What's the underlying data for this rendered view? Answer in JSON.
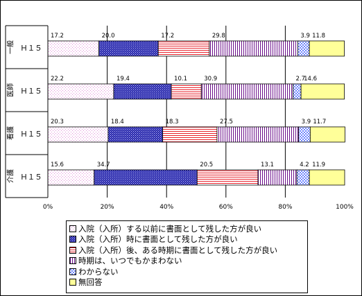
{
  "chart_data": {
    "type": "bar",
    "orientation": "horizontal",
    "stacked": true,
    "percent": true,
    "groups": [
      "一般",
      "医師",
      "看護",
      "介護"
    ],
    "categories": [
      "Ｈ１５",
      "Ｈ１５",
      "Ｈ１５",
      "Ｈ１５"
    ],
    "series": [
      {
        "name": "入院（入所）する以前に書面として残した方が良い",
        "values": [
          17.2,
          22.2,
          20.3,
          15.6
        ],
        "labels": [
          "17.2",
          "22.2",
          "20.3",
          "15.6"
        ],
        "pattern": "dots",
        "color": "#ffd6ff"
      },
      {
        "name": "入院（入所）時に書面として残した方が良い",
        "values": [
          20.0,
          19.4,
          18.4,
          34.7
        ],
        "labels": [
          "20.0",
          "19.4",
          "18.4",
          "34.7"
        ],
        "pattern": "dense-blue",
        "color": "#2b2bb0"
      },
      {
        "name": "入院（入所）後、ある時期に書面として残した方が良い",
        "values": [
          17.2,
          10.1,
          18.3,
          20.5
        ],
        "labels": [
          "17.2",
          "10.1",
          "18.3",
          "20.5"
        ],
        "pattern": "red-hlines",
        "color": "#e8202a"
      },
      {
        "name": "時期は、いつでもかまわない",
        "values": [
          29.8,
          30.9,
          27.5,
          13.1
        ],
        "labels": [
          "29.8",
          "30.9",
          "27.5",
          "13.1"
        ],
        "pattern": "purple-vlines",
        "color": "#6a0d8a"
      },
      {
        "name": "わからない",
        "values": [
          3.9,
          2.7,
          3.9,
          4.2
        ],
        "labels": [
          "3.9",
          "2.7",
          "3.9",
          "4.2"
        ],
        "pattern": "checker",
        "color": "#7a8cff"
      },
      {
        "name": "無回答",
        "values": [
          11.8,
          14.6,
          11.7,
          11.9
        ],
        "labels": [
          "11.8",
          "14.6",
          "11.7",
          "11.9"
        ],
        "pattern": "solid",
        "color": "#ffff99"
      }
    ],
    "xlim": [
      0,
      100
    ],
    "xticks": [
      "0%",
      "20%",
      "40%",
      "60%",
      "80%",
      "100%"
    ],
    "grid": "vertical",
    "legend": "bottom"
  }
}
